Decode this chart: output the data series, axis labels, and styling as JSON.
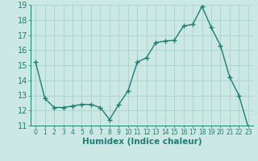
{
  "x": [
    0,
    1,
    2,
    3,
    4,
    5,
    6,
    7,
    8,
    9,
    10,
    11,
    12,
    13,
    14,
    15,
    16,
    17,
    18,
    19,
    20,
    21,
    22,
    23
  ],
  "y": [
    15.2,
    12.8,
    12.2,
    12.2,
    12.3,
    12.4,
    12.4,
    12.2,
    11.4,
    12.4,
    13.3,
    15.2,
    15.5,
    16.5,
    16.6,
    16.65,
    17.6,
    17.7,
    18.9,
    17.5,
    16.3,
    14.2,
    13.0,
    10.9
  ],
  "line_color": "#1e7d72",
  "bg_color": "#cce8e5",
  "grid_color": "#aed4d0",
  "text_color": "#1e7d72",
  "xlabel": "Humidex (Indice chaleur)",
  "ylim": [
    11,
    19
  ],
  "xlim": [
    -0.5,
    23.5
  ],
  "yticks": [
    11,
    12,
    13,
    14,
    15,
    16,
    17,
    18,
    19
  ],
  "xticks": [
    0,
    1,
    2,
    3,
    4,
    5,
    6,
    7,
    8,
    9,
    10,
    11,
    12,
    13,
    14,
    15,
    16,
    17,
    18,
    19,
    20,
    21,
    22,
    23
  ],
  "marker": "+",
  "markersize": 4,
  "linewidth": 1.0,
  "ytick_fontsize": 7,
  "xtick_fontsize": 5.5,
  "xlabel_fontsize": 7.5
}
